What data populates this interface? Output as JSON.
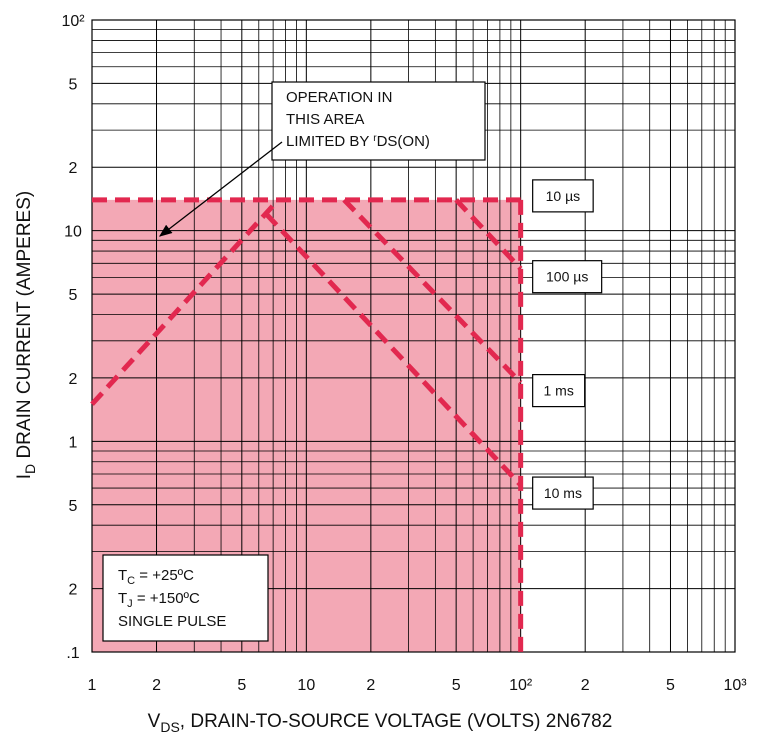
{
  "chart_data": {
    "type": "line",
    "x_label": [
      "V",
      "DS",
      ", DRAIN-TO-SOURCE VOLTAGE (VOLTS) 2N6782"
    ],
    "y_label": [
      "I",
      "D",
      " DRAIN CURRENT (AMPERES)"
    ],
    "log_x": true,
    "log_y": true,
    "grid": true,
    "xlim": [
      1,
      1000
    ],
    "ylim": [
      0.1,
      100
    ],
    "xticks": [
      1,
      2,
      5,
      10,
      {
        "value": 20,
        "label": "2"
      },
      {
        "value": 50,
        "label": "5"
      },
      {
        "value": 100,
        "label": "10²"
      },
      {
        "value": 200,
        "label": "2"
      },
      {
        "value": 500,
        "label": "5"
      },
      {
        "value": 1000,
        "label": "10³"
      }
    ],
    "yticks": [
      {
        "value": 0.1,
        "label": ".1"
      },
      {
        "value": 0.2,
        "label": "2"
      },
      {
        "value": 0.5,
        "label": "5"
      },
      1,
      2,
      5,
      10,
      {
        "value": 20,
        "label": "2"
      },
      {
        "value": 50,
        "label": "5"
      },
      {
        "value": 100,
        "label": "10²"
      }
    ],
    "x_minor": [
      3,
      4,
      6,
      7,
      8,
      9,
      30,
      40,
      60,
      70,
      80,
      90,
      300,
      400,
      600,
      700,
      800,
      900
    ],
    "y_minor": [
      0.3,
      0.4,
      0.6,
      0.7,
      0.8,
      0.9,
      3,
      4,
      6,
      7,
      8,
      9,
      30,
      40,
      60,
      70,
      80,
      90
    ],
    "region": {
      "color": "#f3a8b5",
      "x": [
        1,
        100
      ],
      "y": [
        0.1,
        14
      ]
    },
    "series": [
      {
        "name": "10 µs",
        "color": "#e2284f",
        "x": [
          1,
          100
        ],
        "values": [
          14,
          14
        ]
      },
      {
        "name": "100 µs",
        "color": "#e2284f",
        "x": [
          50,
          100
        ],
        "values": [
          14,
          6.6
        ]
      },
      {
        "name": "1 ms",
        "color": "#e2284f",
        "x": [
          15,
          100
        ],
        "values": [
          14,
          1.9
        ]
      },
      {
        "name": "10 ms",
        "color": "#e2284f",
        "x": [
          6.5,
          100
        ],
        "values": [
          12,
          0.62
        ]
      },
      {
        "color": "#e2284f",
        "x": [
          1,
          7.4
        ],
        "values": [
          1.5,
          14
        ]
      },
      {
        "color": "#e2284f",
        "x": [
          100,
          100
        ],
        "values": [
          14,
          0.1
        ]
      }
    ],
    "note": {
      "lines": [
        "OPERATION IN",
        "THIS AREA",
        "LIMITED BY "
      ],
      "symbol": [
        "r",
        "DS(ON)"
      ]
    },
    "conditions": [
      [
        "T",
        "C",
        " = +25ºC"
      ],
      [
        "T",
        "J",
        " = +150ºC"
      ],
      [
        "SINGLE PULSE"
      ]
    ]
  }
}
